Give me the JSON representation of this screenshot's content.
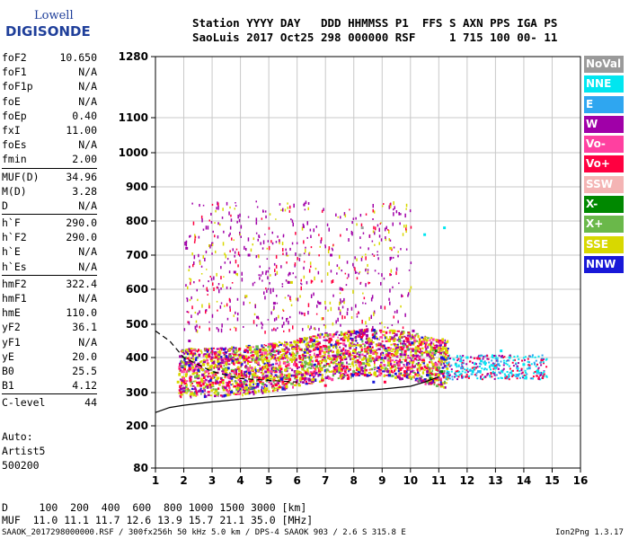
{
  "logo": {
    "line1": "Lowell",
    "line2": "DIGISONDE"
  },
  "header": {
    "line1": "Station YYYY DAY   DDD HHMMSS P1  FFS S AXN PPS IGA PS",
    "line2": "SaoLuis 2017 Oct25 298 000000 RSF     1 715 100 00- 11"
  },
  "params": [
    [
      {
        "label": "foF2",
        "value": "10.650"
      },
      {
        "label": "foF1",
        "value": "N/A"
      },
      {
        "label": "foF1p",
        "value": "N/A"
      },
      {
        "label": "foE",
        "value": "N/A"
      },
      {
        "label": "foEp",
        "value": "0.40"
      },
      {
        "label": "fxI",
        "value": "11.00"
      },
      {
        "label": "foEs",
        "value": "N/A"
      },
      {
        "label": "fmin",
        "value": "2.00"
      }
    ],
    [
      {
        "label": "MUF(D)",
        "value": "34.96"
      },
      {
        "label": "M(D)",
        "value": "3.28"
      },
      {
        "label": "D",
        "value": "N/A"
      }
    ],
    [
      {
        "label": "h`F",
        "value": "290.0"
      },
      {
        "label": "h`F2",
        "value": "290.0"
      },
      {
        "label": "h`E",
        "value": "N/A"
      },
      {
        "label": "h`Es",
        "value": "N/A"
      }
    ],
    [
      {
        "label": "hmF2",
        "value": "322.4"
      },
      {
        "label": "hmF1",
        "value": "N/A"
      },
      {
        "label": "hmE",
        "value": "110.0"
      },
      {
        "label": "yF2",
        "value": "36.1"
      },
      {
        "label": "yF1",
        "value": "N/A"
      },
      {
        "label": "yE",
        "value": "20.0"
      },
      {
        "label": "B0",
        "value": "25.5"
      },
      {
        "label": "B1",
        "value": "4.12"
      }
    ],
    [
      {
        "label": "C-level",
        "value": "44"
      }
    ]
  ],
  "auto": {
    "line1": "Auto:",
    "line2": "Artist5",
    "line3": "500200"
  },
  "legend": [
    {
      "label": "NoVal",
      "color": "#9a9a9a"
    },
    {
      "label": "NNE",
      "color": "#00e6f0"
    },
    {
      "label": "E",
      "color": "#2fa6f0"
    },
    {
      "label": "W",
      "color": "#a000a8"
    },
    {
      "label": "Vo-",
      "color": "#ff40a0"
    },
    {
      "label": "Vo+",
      "color": "#ff0040"
    },
    {
      "label": "SSW",
      "color": "#f4b4b4"
    },
    {
      "label": "X-",
      "color": "#008800"
    },
    {
      "label": "X+",
      "color": "#6ab84a"
    },
    {
      "label": "SSE",
      "color": "#d8d800"
    },
    {
      "label": "NNW",
      "color": "#1818d8"
    }
  ],
  "footer": {
    "line1": "D     100  200  400  600  800 1000 1500 3000 [km]",
    "line2": "MUF  11.0 11.1 11.7 12.6 13.9 15.7 21.1 35.0 [MHz]",
    "line3": "SAAOK_2017298000000.RSF / 300fx256h 50 kHz 5.0 km / DPS-4 SAAOK 903 / 2.6 S 315.8 E",
    "line4": "Ion2Png 1.3.17"
  },
  "chart_data": {
    "type": "scatter",
    "title": "",
    "xlabel": "",
    "ylabel": "",
    "x_range": [
      1,
      16
    ],
    "y_range": [
      80,
      1280
    ],
    "x_ticks": [
      1,
      2,
      3,
      4,
      5,
      6,
      7,
      8,
      9,
      10,
      11,
      12,
      13,
      14,
      15,
      16
    ],
    "y_ticks": [
      80,
      200,
      300,
      400,
      500,
      600,
      700,
      800,
      900,
      1000,
      1100,
      1280
    ],
    "y_scale": "reciprocal-like (ionogram virtual height)",
    "grid": true,
    "legend_position": "right",
    "series": [
      {
        "name": "SSE",
        "color": "#d8d800",
        "points": [
          [
            1.8,
            330
          ],
          [
            2.5,
            320
          ],
          [
            3.5,
            380
          ],
          [
            4.0,
            400
          ],
          [
            4.5,
            350
          ],
          [
            5.0,
            390
          ],
          [
            5.5,
            420
          ],
          [
            6.0,
            360
          ],
          [
            6.5,
            400
          ],
          [
            7.5,
            380
          ],
          [
            8.0,
            420
          ],
          [
            8.5,
            390
          ],
          [
            9.0,
            370
          ],
          [
            9.5,
            410
          ],
          [
            10.2,
            430
          ],
          [
            10.8,
            380
          ],
          [
            11.0,
            350
          ],
          [
            4.2,
            580
          ],
          [
            5.8,
            620
          ],
          [
            9.3,
            720
          ]
        ]
      },
      {
        "name": "W",
        "color": "#a000a8",
        "points": [
          [
            1.9,
            310
          ],
          [
            2.2,
            450
          ],
          [
            3.0,
            400
          ],
          [
            3.8,
            650
          ],
          [
            4.3,
            700
          ],
          [
            5.2,
            560
          ],
          [
            5.7,
            620
          ],
          [
            6.3,
            340
          ],
          [
            7.2,
            700
          ],
          [
            7.9,
            470
          ],
          [
            8.6,
            420
          ],
          [
            9.2,
            360
          ],
          [
            10.1,
            480
          ],
          [
            10.6,
            360
          ],
          [
            2.1,
            720
          ],
          [
            4.6,
            520
          ],
          [
            6.8,
            560
          ]
        ]
      },
      {
        "name": "Vo+",
        "color": "#ff0040",
        "points": [
          [
            1.9,
            300
          ],
          [
            2.6,
            320
          ],
          [
            3.3,
            330
          ],
          [
            4.0,
            320
          ],
          [
            4.8,
            340
          ],
          [
            5.5,
            330
          ],
          [
            6.2,
            340
          ],
          [
            7.0,
            320
          ],
          [
            7.8,
            340
          ],
          [
            8.4,
            350
          ],
          [
            9.1,
            330
          ],
          [
            9.8,
            360
          ],
          [
            10.4,
            370
          ],
          [
            10.9,
            340
          ]
        ]
      },
      {
        "name": "Vo-",
        "color": "#ff40a0",
        "points": [
          [
            2.0,
            340
          ],
          [
            2.8,
            360
          ],
          [
            3.6,
            350
          ],
          [
            4.4,
            370
          ],
          [
            5.1,
            360
          ],
          [
            5.9,
            380
          ],
          [
            6.6,
            350
          ],
          [
            7.4,
            370
          ],
          [
            8.2,
            380
          ],
          [
            8.9,
            360
          ],
          [
            9.6,
            380
          ],
          [
            10.3,
            400
          ]
        ]
      },
      {
        "name": "NNE",
        "color": "#00e6f0",
        "points": [
          [
            10.5,
            760
          ],
          [
            11.2,
            780
          ],
          [
            11.6,
            380
          ],
          [
            12.0,
            400
          ],
          [
            12.5,
            390
          ],
          [
            13.0,
            370
          ],
          [
            13.5,
            400
          ],
          [
            14.0,
            380
          ],
          [
            14.5,
            360
          ],
          [
            12.2,
            360
          ],
          [
            13.2,
            420
          ]
        ]
      },
      {
        "name": "E",
        "color": "#2fa6f0",
        "points": [
          [
            11.8,
            370
          ],
          [
            12.4,
            360
          ],
          [
            13.1,
            380
          ],
          [
            13.8,
            350
          ],
          [
            14.2,
            370
          ]
        ]
      },
      {
        "name": "X+",
        "color": "#6ab84a",
        "points": [
          [
            6.5,
            380
          ],
          [
            8.0,
            360
          ],
          [
            10.6,
            330
          ],
          [
            11.0,
            370
          ]
        ]
      },
      {
        "name": "X-",
        "color": "#008800",
        "points": [
          [
            10.7,
            340
          ],
          [
            11.1,
            360
          ],
          [
            10.9,
            420
          ]
        ]
      },
      {
        "name": "NNW",
        "color": "#1818d8",
        "points": [
          [
            5.5,
            310
          ],
          [
            8.7,
            330
          ],
          [
            10.6,
            350
          ],
          [
            11.1,
            400
          ]
        ]
      },
      {
        "name": "NoVal",
        "color": "#9a9a9a",
        "points": [
          [
            6.1,
            700
          ],
          [
            8.3,
            780
          ]
        ]
      }
    ],
    "curves": [
      {
        "style": "solid",
        "points": [
          [
            1,
            240
          ],
          [
            1.5,
            255
          ],
          [
            2,
            262
          ],
          [
            3,
            272
          ],
          [
            4,
            280
          ],
          [
            5,
            287
          ],
          [
            6,
            293
          ],
          [
            7,
            300
          ],
          [
            8,
            305
          ],
          [
            9,
            310
          ],
          [
            10,
            318
          ],
          [
            10.5,
            330
          ],
          [
            11,
            345
          ]
        ]
      },
      {
        "style": "dashed",
        "points": [
          [
            1,
            480
          ],
          [
            1.5,
            450
          ],
          [
            2,
            400
          ],
          [
            3,
            360
          ],
          [
            4,
            340
          ],
          [
            5,
            335
          ],
          [
            6,
            330
          ]
        ]
      }
    ]
  }
}
